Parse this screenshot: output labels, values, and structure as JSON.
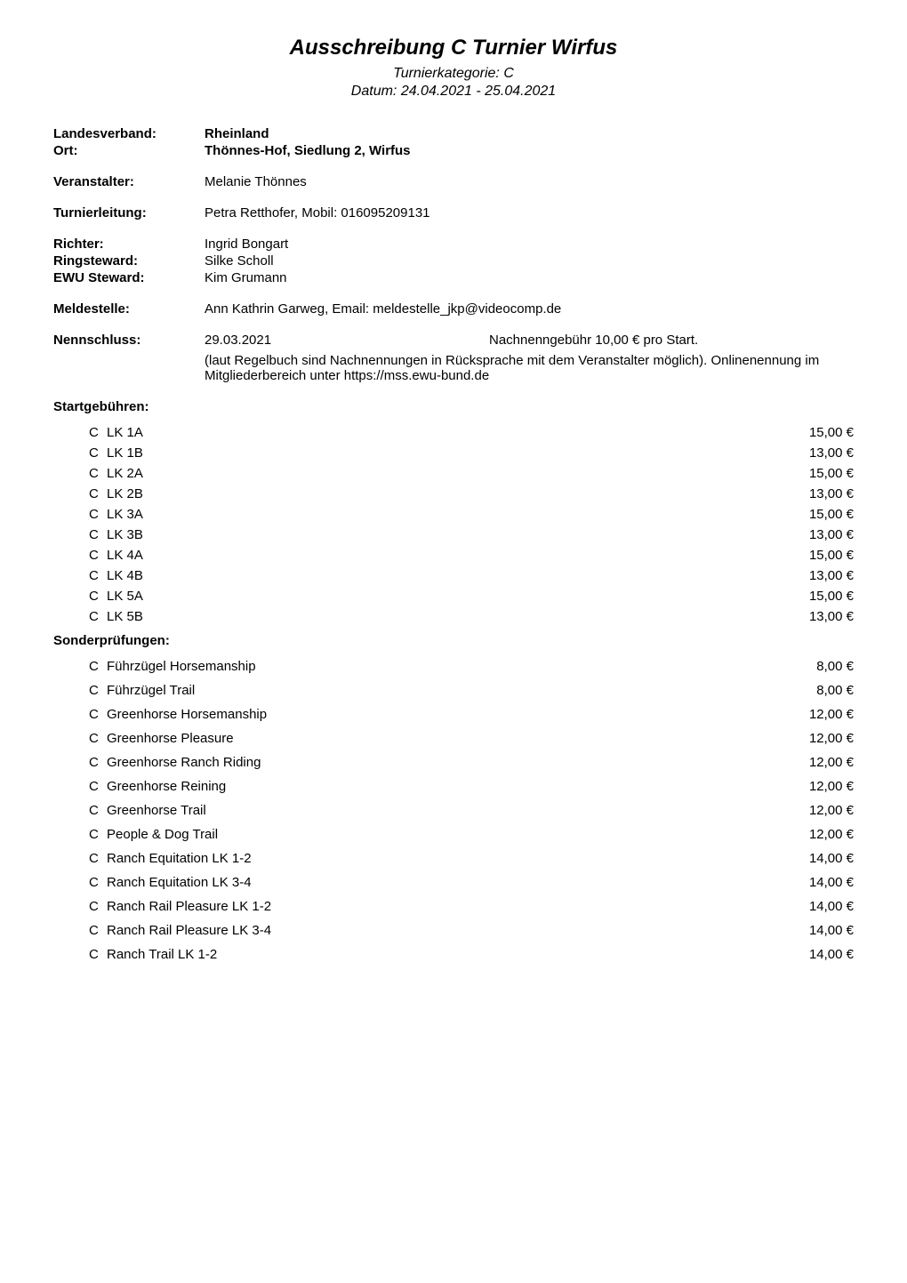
{
  "header": {
    "title": "Ausschreibung C Turnier Wirfus",
    "category": "Turnierkategorie: C",
    "date": "Datum: 24.04.2021 - 25.04.2021"
  },
  "info": {
    "landesverband_label": "Landesverband:",
    "landesverband_value": "Rheinland",
    "ort_label": "Ort:",
    "ort_value": "Thönnes-Hof, Siedlung 2, Wirfus",
    "veranstalter_label": "Veranstalter:",
    "veranstalter_value": "Melanie Thönnes",
    "turnierleitung_label": "Turnierleitung:",
    "turnierleitung_value": "Petra Retthofer, Mobil: 016095209131",
    "richter_label": "Richter:",
    "richter_value": "Ingrid Bongart",
    "ringsteward_label": "Ringsteward:",
    "ringsteward_value": "Silke Scholl",
    "ewu_steward_label": "EWU Steward:",
    "ewu_steward_value": "Kim Grumann",
    "meldestelle_label": "Meldestelle:",
    "meldestelle_value": "Ann Kathrin Garweg, Email: meldestelle_jkp@videocomp.de",
    "nennschluss_label": "Nennschluss:",
    "nennschluss_date": "29.03.2021",
    "nennschluss_fee": "Nachnenngebühr 10,00 € pro Start.",
    "nennschluss_note": "(laut Regelbuch sind Nachnennungen in Rücksprache mit dem Veranstalter möglich). Onlinenennung im Mitgliederbereich unter https://mss.ewu-bund.de"
  },
  "startgebuehren": {
    "label": "Startgebühren:",
    "rows": [
      {
        "cat": "C",
        "name": "LK 1A",
        "price": "15,00 €"
      },
      {
        "cat": "C",
        "name": "LK 1B",
        "price": "13,00 €"
      },
      {
        "cat": "C",
        "name": "LK 2A",
        "price": "15,00 €"
      },
      {
        "cat": "C",
        "name": "LK 2B",
        "price": "13,00 €"
      },
      {
        "cat": "C",
        "name": "LK 3A",
        "price": "15,00 €"
      },
      {
        "cat": "C",
        "name": "LK 3B",
        "price": "13,00 €"
      },
      {
        "cat": "C",
        "name": "LK 4A",
        "price": "15,00 €"
      },
      {
        "cat": "C",
        "name": "LK 4B",
        "price": "13,00 €"
      },
      {
        "cat": "C",
        "name": "LK 5A",
        "price": "15,00 €"
      },
      {
        "cat": "C",
        "name": "LK 5B",
        "price": "13,00 €"
      }
    ]
  },
  "sonderpruefungen": {
    "label": "Sonderprüfungen:",
    "rows": [
      {
        "cat": "C",
        "name": "Führzügel Horsemanship",
        "price": "8,00 €"
      },
      {
        "cat": "C",
        "name": "Führzügel Trail",
        "price": "8,00 €"
      },
      {
        "cat": "C",
        "name": "Greenhorse Horsemanship",
        "price": "12,00 €"
      },
      {
        "cat": "C",
        "name": "Greenhorse Pleasure",
        "price": "12,00 €"
      },
      {
        "cat": "C",
        "name": "Greenhorse Ranch Riding",
        "price": "12,00 €"
      },
      {
        "cat": "C",
        "name": "Greenhorse Reining",
        "price": "12,00 €"
      },
      {
        "cat": "C",
        "name": "Greenhorse Trail",
        "price": "12,00 €"
      },
      {
        "cat": "C",
        "name": "People & Dog Trail",
        "price": "12,00 €"
      },
      {
        "cat": "C",
        "name": "Ranch Equitation LK 1-2",
        "price": "14,00 €"
      },
      {
        "cat": "C",
        "name": "Ranch Equitation LK 3-4",
        "price": "14,00 €"
      },
      {
        "cat": "C",
        "name": "Ranch Rail Pleasure LK 1-2",
        "price": "14,00 €"
      },
      {
        "cat": "C",
        "name": "Ranch Rail Pleasure LK 3-4",
        "price": "14,00 €"
      },
      {
        "cat": "C",
        "name": "Ranch Trail LK 1-2",
        "price": "14,00 €"
      }
    ]
  }
}
